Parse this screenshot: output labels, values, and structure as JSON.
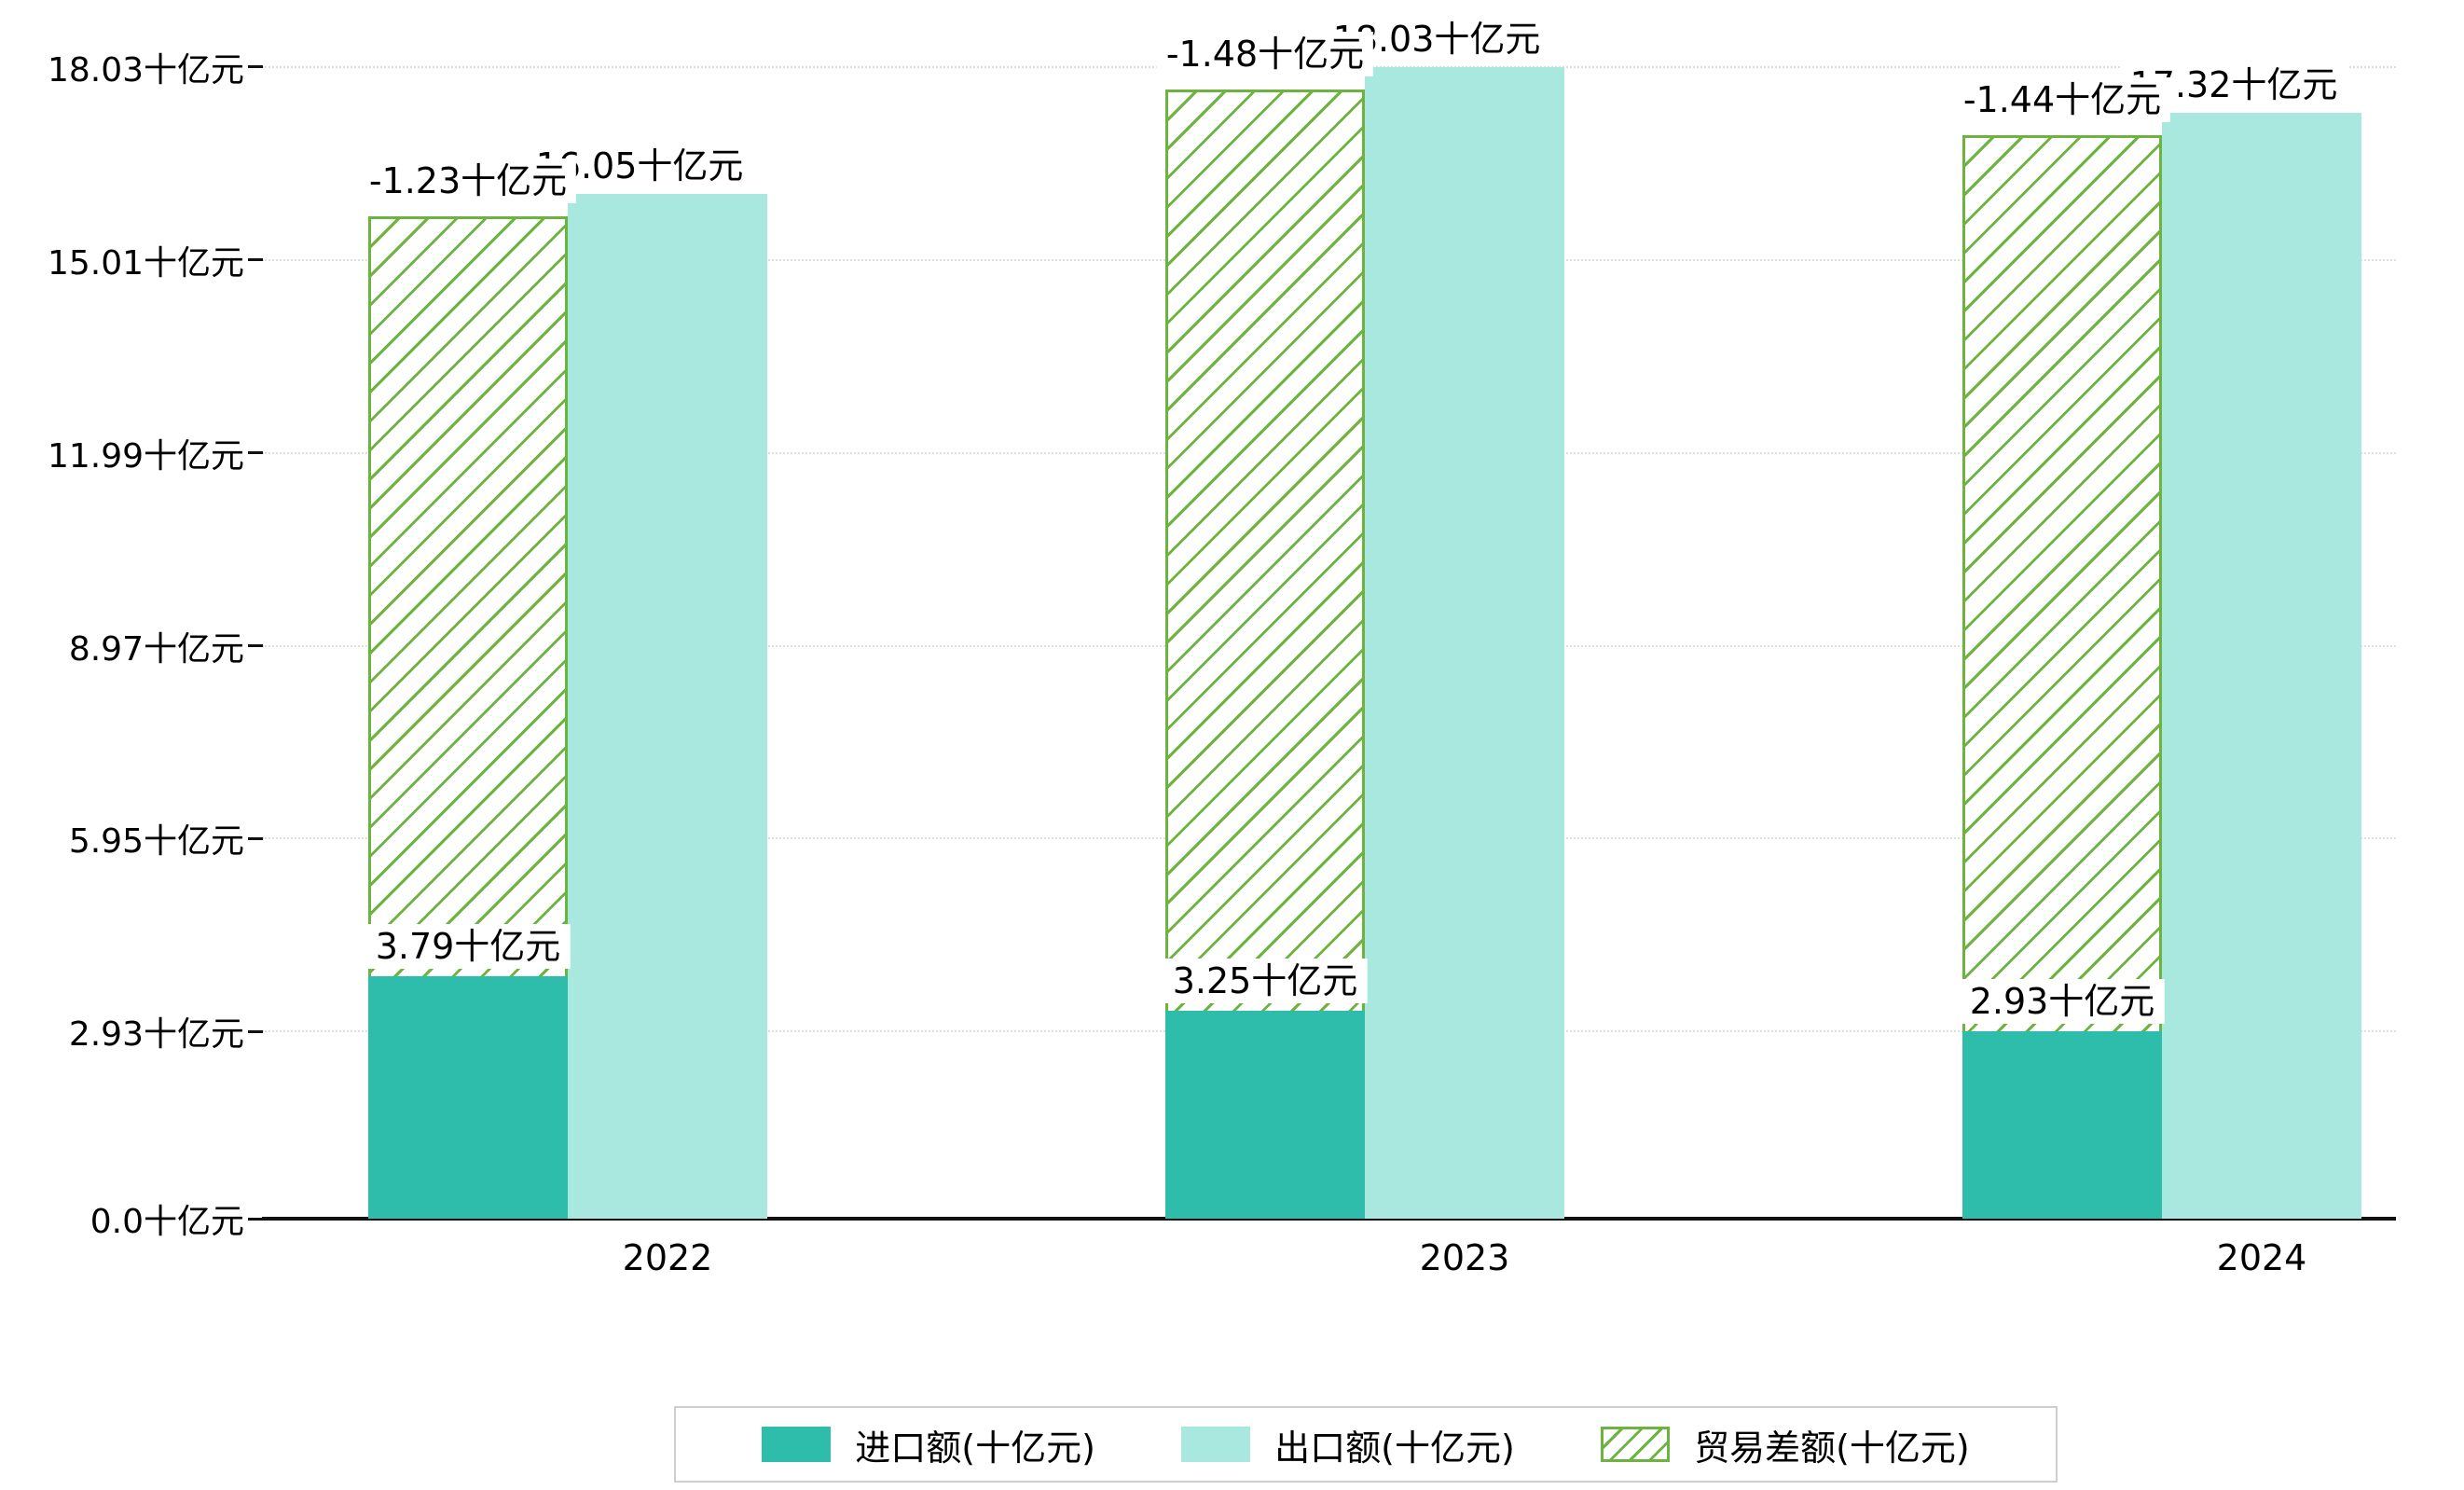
{
  "chart_data": {
    "type": "bar",
    "title": "",
    "xlabel": "",
    "ylabel": "",
    "unit": "十亿元",
    "categories": [
      "2022",
      "2023",
      "2024"
    ],
    "series": [
      {
        "name": "进口额(十亿元)",
        "color": "#2ebcab",
        "values": [
          3.79,
          3.25,
          2.93
        ]
      },
      {
        "name": "出口额(十亿元)",
        "color": "#a9e8de",
        "values": [
          16.05,
          18.03,
          17.32
        ]
      },
      {
        "name": "贸易差额(十亿元)",
        "color": "#6db33f",
        "values": [
          -1.23,
          -1.48,
          -1.44
        ],
        "style": "hatched",
        "note": "drawn as a hatched outline bar stacked from the top of the import bar up to just below the export bar top"
      }
    ],
    "groups": [
      {
        "year": "2022",
        "import": 3.79,
        "export": 16.05,
        "import_label": "3.79十亿元",
        "export_label": "16.05十亿元",
        "balance_label": "-1.23十亿元"
      },
      {
        "year": "2023",
        "import": 3.25,
        "export": 18.03,
        "import_label": "3.25十亿元",
        "export_label": "18.03十亿元",
        "balance_label": "-1.48十亿元"
      },
      {
        "year": "2024",
        "import": 2.93,
        "export": 17.32,
        "import_label": "2.93十亿元",
        "export_label": "17.32十亿元",
        "balance_label": "-1.44十亿元"
      }
    ],
    "yticks": [
      {
        "label": "0.0十亿元",
        "value": 0.0
      },
      {
        "label": "2.93十亿元",
        "value": 2.93
      },
      {
        "label": "5.95十亿元",
        "value": 5.95
      },
      {
        "label": "8.97十亿元",
        "value": 8.97
      },
      {
        "label": "11.99十亿元",
        "value": 11.99
      },
      {
        "label": "15.01十亿元",
        "value": 15.01
      },
      {
        "label": "18.03十亿元",
        "value": 18.03
      }
    ],
    "ylim": [
      0,
      18.03
    ],
    "grid": "dotted horizontal gridlines",
    "legend_position": "bottom",
    "legend": [
      {
        "label": "进口额(十亿元)",
        "style": "solid",
        "color": "#2ebcab"
      },
      {
        "label": "出口额(十亿元)",
        "style": "solid",
        "color": "#a9e8de"
      },
      {
        "label": "贸易差额(十亿元)",
        "style": "hatched",
        "color": "#6db33f"
      }
    ],
    "colors": {
      "import": "#2ebcab",
      "export": "#a9e8de",
      "balance": "#6db33f",
      "axis": "#111111",
      "grid": "#dedede",
      "label_background": "#ffffff"
    }
  }
}
